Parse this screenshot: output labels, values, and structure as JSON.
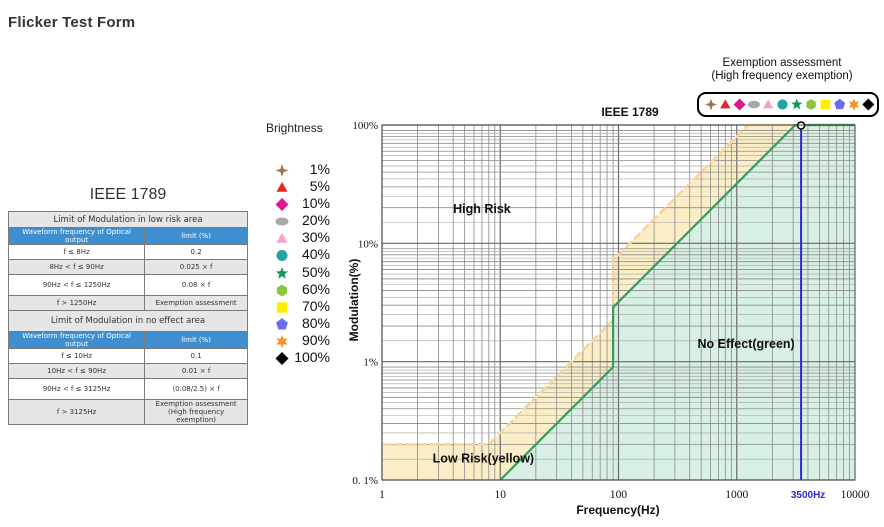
{
  "page_title": "Flicker Test Form",
  "table": {
    "heading": "IEEE 1789",
    "section1": {
      "title": "Limit of Modulation in low risk area",
      "col1": "Waveform frequency of Optical output",
      "col2": "limit (%)",
      "rows": [
        {
          "cond": "f  ≤ 8Hz",
          "limit": "0.2"
        },
        {
          "cond": "8Hz <  f  ≤ 90Hz",
          "limit": "0.025 × f"
        },
        {
          "cond": "90Hz <  f  ≤ 1250Hz",
          "limit": "0.08 × f"
        },
        {
          "cond": "f  > 1250Hz",
          "limit": "Exemption assessment"
        }
      ]
    },
    "section2": {
      "title": "Limit of Modulation in no effect area",
      "col1": "Waveform frequency of Optical output",
      "col2": "limit (%)",
      "rows": [
        {
          "cond": "f  ≤ 10Hz",
          "limit": "0.1"
        },
        {
          "cond": "10Hz <  f  ≤ 90Hz",
          "limit": "0.01 × f"
        },
        {
          "cond": "90Hz <  f  ≤ 3125Hz",
          "limit": "(0.08/2.5)  ×    f"
        },
        {
          "cond": "f  > 3125Hz",
          "limit": "Exemption assessment",
          "limit2": "(High frequency exemption)"
        }
      ]
    }
  },
  "brightness_label": "Brightness",
  "brightness_legend": [
    {
      "label": "1%",
      "shape": "star4",
      "color": "#a0734f"
    },
    {
      "label": "5%",
      "shape": "triangle",
      "color": "#e02a2a"
    },
    {
      "label": "10%",
      "shape": "diamond",
      "color": "#e0168e"
    },
    {
      "label": "20%",
      "shape": "ellipse",
      "color": "#a8a8a8"
    },
    {
      "label": "30%",
      "shape": "triangle",
      "color": "#f4a2cc"
    },
    {
      "label": "40%",
      "shape": "circle",
      "color": "#25a3a3"
    },
    {
      "label": "50%",
      "shape": "star5",
      "color": "#0e9a5a"
    },
    {
      "label": "60%",
      "shape": "hexagon",
      "color": "#8cc63f"
    },
    {
      "label": "70%",
      "shape": "square",
      "color": "#ffee00"
    },
    {
      "label": "80%",
      "shape": "pentagon",
      "color": "#6b6bf0"
    },
    {
      "label": "90%",
      "shape": "star6",
      "color": "#f7922a"
    },
    {
      "label": "100%",
      "shape": "diamond",
      "color": "#000000"
    }
  ],
  "exemption": {
    "line1": "Exemption assessment",
    "line2": "(High frequency exemption)"
  },
  "colors": {
    "low_risk_fill": "#fbeec6",
    "low_risk_line": "#f5d59a",
    "no_effect_fill": "#d8efe3",
    "no_effect_line": "#3a9a5e",
    "marker_line": "#2a2ad0",
    "table_header": "#3f8ed0"
  },
  "chart_data": {
    "type": "line",
    "title": "IEEE 1789",
    "xlabel": "Frequency(Hz)",
    "ylabel": "Modulation(%)",
    "x_scale": "log",
    "y_scale": "log",
    "xlim": [
      1,
      10000
    ],
    "ylim": [
      0.1,
      100
    ],
    "x_ticks": [
      {
        "v": 1,
        "label": "1"
      },
      {
        "v": 10,
        "label": "10"
      },
      {
        "v": 100,
        "label": "100"
      },
      {
        "v": 1000,
        "label": "1000"
      },
      {
        "v": 10000,
        "label": "10000"
      }
    ],
    "y_ticks": [
      {
        "v": 0.1,
        "label": "0. 1%"
      },
      {
        "v": 1,
        "label": "1%"
      },
      {
        "v": 10,
        "label": "10%"
      },
      {
        "v": 100,
        "label": "100%"
      }
    ],
    "grid": true,
    "series": [
      {
        "name": "Low Risk(yellow)",
        "points": [
          [
            1,
            0.2
          ],
          [
            8,
            0.2
          ],
          [
            90,
            2.25
          ],
          [
            90,
            7.2
          ],
          [
            1250,
            100
          ],
          [
            10000,
            100
          ]
        ]
      },
      {
        "name": "No Effect(green)",
        "points": [
          [
            10,
            0.1
          ],
          [
            90,
            0.9
          ],
          [
            90,
            2.88
          ],
          [
            3125,
            100
          ],
          [
            10000,
            100
          ]
        ]
      }
    ],
    "region_labels": [
      {
        "text": "High Risk",
        "x": 7,
        "y": 18
      },
      {
        "text": "Low Risk(yellow)",
        "x": 7.2,
        "y": 0.14
      },
      {
        "text": "No Effect(green)",
        "x": 1200,
        "y": 1.3
      }
    ],
    "marker_line": {
      "x": 3500,
      "label": "3500Hz"
    }
  }
}
